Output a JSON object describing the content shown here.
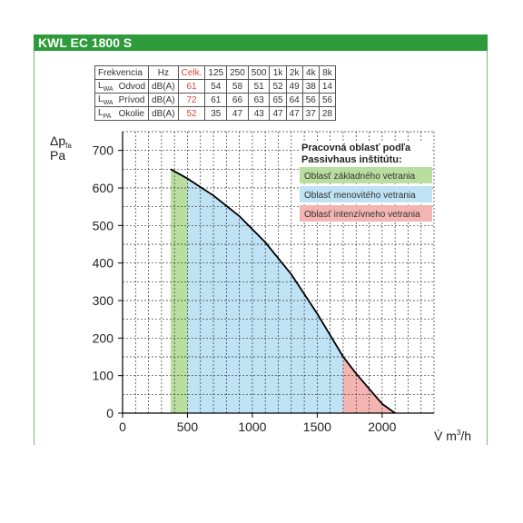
{
  "header": {
    "title": "KWL EC 1800 S"
  },
  "noise_table": {
    "header": [
      "Frekvencia",
      "Hz",
      "Celk.",
      "125",
      "250",
      "500",
      "1k",
      "2k",
      "4k",
      "8k"
    ],
    "rows": [
      {
        "sym": "L",
        "sub": "WA",
        "name": "Odvod",
        "unit": "dB(A)",
        "total": "61",
        "values": [
          "54",
          "58",
          "51",
          "52",
          "49",
          "38",
          "14"
        ]
      },
      {
        "sym": "L",
        "sub": "WA",
        "name": "Prívod",
        "unit": "dB(A)",
        "total": "72",
        "values": [
          "61",
          "66",
          "63",
          "65",
          "64",
          "56",
          "56"
        ]
      },
      {
        "sym": "L",
        "sub": "PA",
        "name": "Okolie",
        "unit": "dB(A)",
        "total": "52",
        "values": [
          "35",
          "47",
          "43",
          "47",
          "47",
          "37",
          "28"
        ]
      }
    ]
  },
  "chart_data": {
    "type": "area",
    "y_label": {
      "line1": "Δp",
      "sub": "fa",
      "line2": "Pa"
    },
    "x_label": {
      "text": "V̇ m",
      "sup": "3",
      "suffix": "/h"
    },
    "xlim": [
      0,
      2400
    ],
    "ylim": [
      0,
      750
    ],
    "xticks": [
      0,
      500,
      1000,
      1500,
      2000
    ],
    "yticks": [
      0,
      100,
      200,
      300,
      400,
      500,
      600,
      700
    ],
    "grid": true,
    "curve": {
      "x": [
        370,
        500,
        700,
        900,
        1100,
        1300,
        1500,
        1700,
        1800,
        1900,
        2000,
        2100
      ],
      "y": [
        650,
        625,
        580,
        525,
        455,
        370,
        265,
        150,
        105,
        65,
        25,
        0
      ]
    },
    "zones": [
      {
        "name": "Oblasť základného vetrania",
        "x_range": [
          370,
          500
        ],
        "color": "#b9dea0"
      },
      {
        "name": "Oblasť menovitého vetrania",
        "x_range": [
          500,
          1700
        ],
        "color": "#bfe2f4"
      },
      {
        "name": "Oblasť intenzívneho vetrania",
        "x_range": [
          1700,
          2100
        ],
        "color": "#f4b5b2"
      }
    ],
    "legend": {
      "title_line1": "Pracovná oblasť podľa",
      "title_line2": "Passivhaus inštitútu:",
      "placement": "top-right"
    }
  }
}
